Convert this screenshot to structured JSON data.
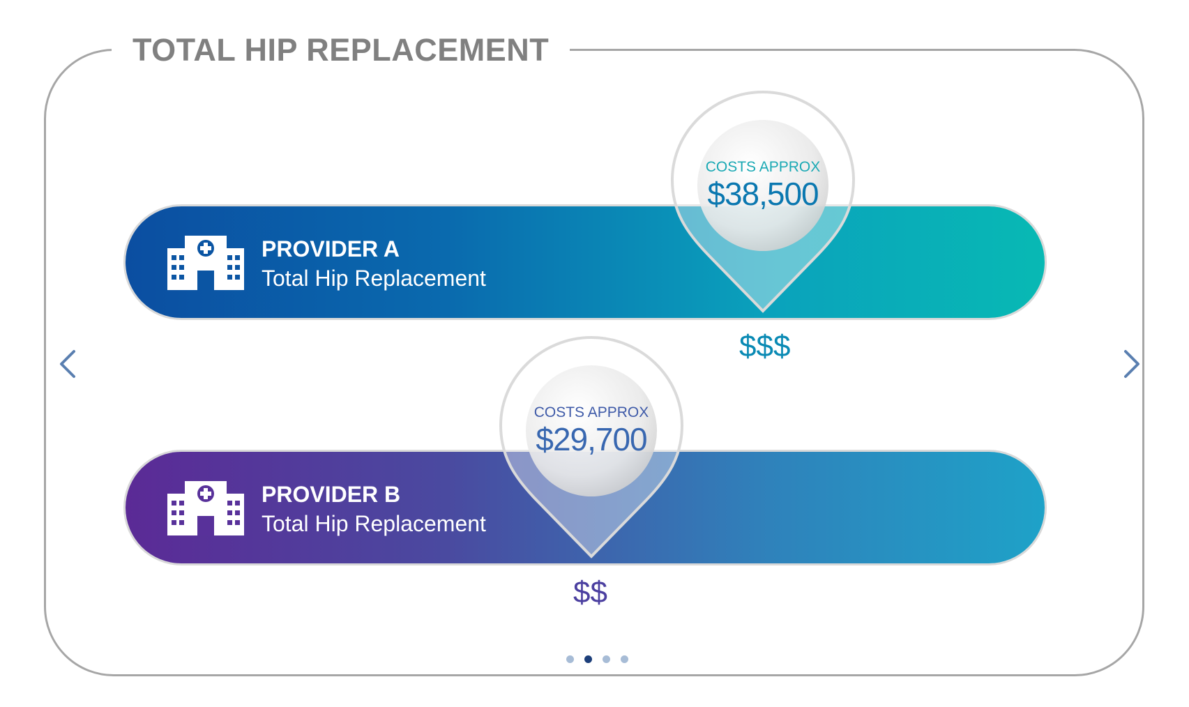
{
  "title": "TOTAL HIP REPLACEMENT",
  "providers": [
    {
      "name": "PROVIDER A",
      "procedure": "Total Hip Replacement",
      "cost_label": "COSTS APPROX",
      "cost_value": "$38,500",
      "price_tier": "$$$",
      "icon": "hospital-icon",
      "gradient": [
        "#0b4ea1",
        "#08b9b4"
      ]
    },
    {
      "name": "PROVIDER B",
      "procedure": "Total Hip Replacement",
      "cost_label": "COSTS APPROX",
      "cost_value": "$29,700",
      "price_tier": "$$",
      "icon": "hospital-icon",
      "gradient": [
        "#5b2a96",
        "#1ea2c8"
      ]
    }
  ],
  "navigation": {
    "prev_icon": "chevron-left-icon",
    "next_icon": "chevron-right-icon",
    "page_count": 4,
    "active_page": 2
  },
  "colors": {
    "frame": "#a6a6a6",
    "title": "#808080",
    "arrow": "#5a7fb0",
    "dot_active": "#1d3f7a",
    "dot_inactive": "#a7bcd6"
  }
}
